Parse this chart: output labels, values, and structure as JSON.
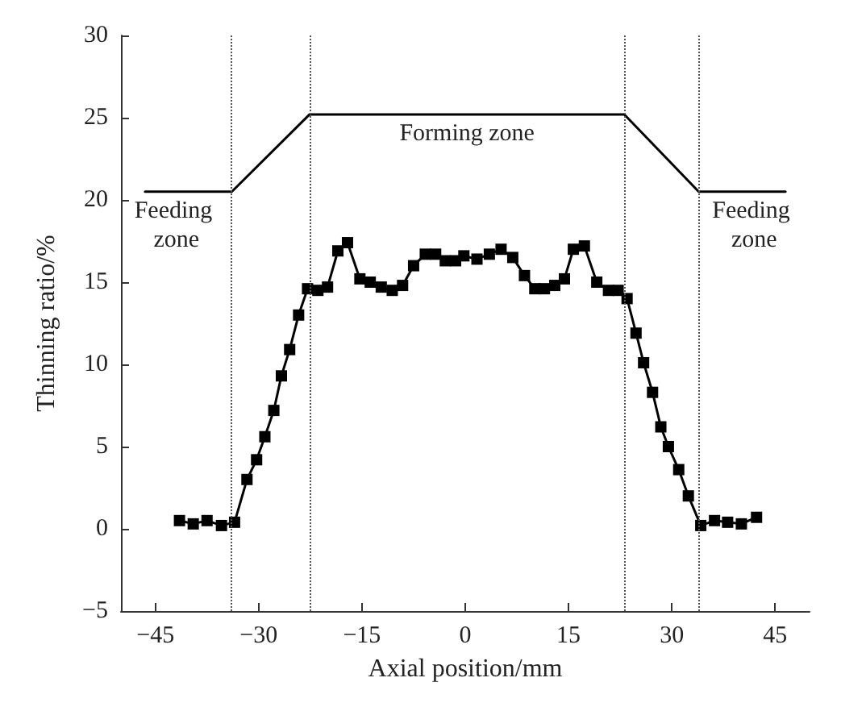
{
  "chart_data": {
    "type": "line",
    "xlabel": "Axial position/mm",
    "ylabel": "Thinning ratio/%",
    "xlim": [
      -50,
      50
    ],
    "ylim": [
      -5,
      30
    ],
    "xticks": [
      -45,
      -30,
      -15,
      0,
      15,
      30,
      45
    ],
    "yticks": [
      -5,
      0,
      5,
      10,
      15,
      20,
      25,
      30
    ],
    "grid": false,
    "line_style": "solid",
    "series": [
      {
        "color": "#000000",
        "marker": "square",
        "x": [
          -41.5,
          -39.5,
          -37.5,
          -35.4,
          -33.5,
          -31.7,
          -30.3,
          -29.1,
          -27.8,
          -26.7,
          -25.5,
          -24.2,
          -22.9,
          -21.4,
          -20.0,
          -18.5,
          -17.1,
          -15.3,
          -13.8,
          -12.2,
          -10.6,
          -9.1,
          -7.5,
          -5.8,
          -4.3,
          -2.9,
          -1.4,
          -0.2,
          1.7,
          3.5,
          5.2,
          6.9,
          8.6,
          10.1,
          11.5,
          13.0,
          14.4,
          15.7,
          17.3,
          19.1,
          20.8,
          22.2,
          23.5,
          24.8,
          25.9,
          27.2,
          28.4,
          29.5,
          31.0,
          32.4,
          34.2,
          36.2,
          38.1,
          40.1,
          42.3
        ],
        "values": [
          0.5,
          0.3,
          0.5,
          0.2,
          0.4,
          3.0,
          4.2,
          5.6,
          7.2,
          9.3,
          10.9,
          13.0,
          14.6,
          14.5,
          14.7,
          16.9,
          17.4,
          15.2,
          15.0,
          14.7,
          14.5,
          14.8,
          16.0,
          16.7,
          16.7,
          16.3,
          16.3,
          16.6,
          16.4,
          16.7,
          17.0,
          16.5,
          15.4,
          14.6,
          14.6,
          14.8,
          15.2,
          17.0,
          17.2,
          15.0,
          14.5,
          14.5,
          14.0,
          11.9,
          10.1,
          8.3,
          6.2,
          5.0,
          3.6,
          2.0,
          0.2,
          0.5,
          0.4,
          0.3,
          0.7
        ]
      },
      {
        "color": "#000000",
        "marker": "none",
        "x": [
          -46.5,
          -33.9,
          -22.6,
          23.1,
          33.9,
          46.5
        ],
        "values": [
          20.5,
          20.5,
          25.2,
          25.2,
          20.5,
          20.5
        ]
      }
    ],
    "ref_lines": [
      {
        "axis": "x",
        "value": -33.9,
        "line_style": "dotted",
        "color": "#555555"
      },
      {
        "axis": "x",
        "value": -22.6,
        "line_style": "dotted",
        "color": "#555555"
      },
      {
        "axis": "x",
        "value": 23.1,
        "line_style": "dotted",
        "color": "#555555"
      },
      {
        "axis": "x",
        "value": 33.9,
        "line_style": "dotted",
        "color": "#555555"
      }
    ],
    "annotations": [
      "Feeding zone",
      "Forming zone",
      "Feeding zone"
    ]
  }
}
